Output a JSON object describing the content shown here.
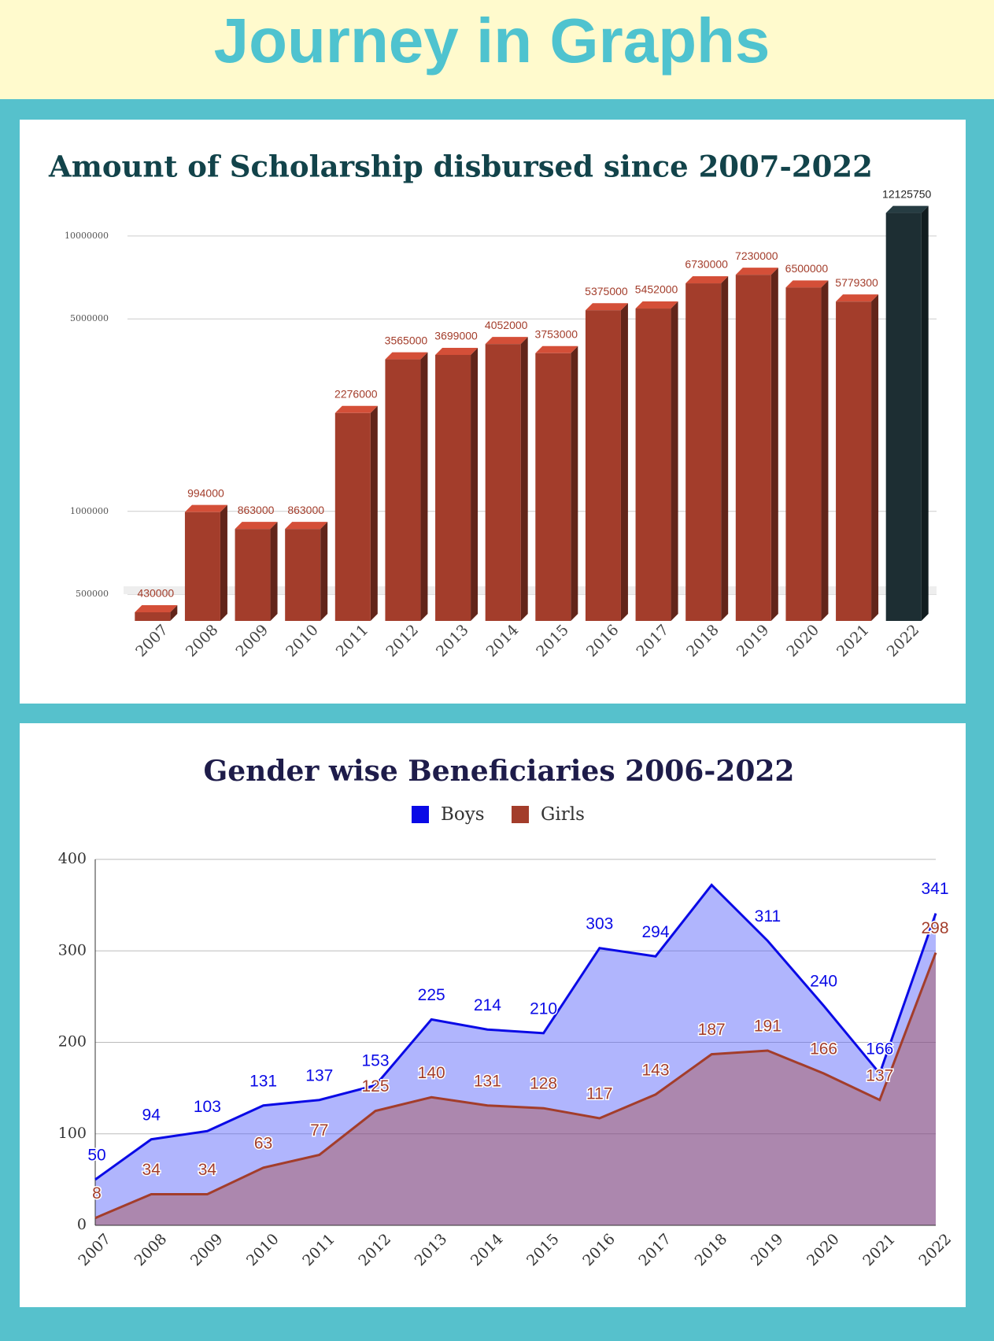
{
  "header": {
    "title": "Journey in Graphs"
  },
  "chart_data": [
    {
      "type": "bar",
      "title": "Amount of Scholarship disbursed since 2007-2022",
      "categories": [
        "2007",
        "2008",
        "2009",
        "2010",
        "2011",
        "2012",
        "2013",
        "2014",
        "2015",
        "2016",
        "2017",
        "2018",
        "2019",
        "2020",
        "2021",
        "2022"
      ],
      "values": [
        430000,
        994000,
        863000,
        863000,
        2276000,
        3565000,
        3699000,
        4052000,
        3753000,
        5375000,
        5452000,
        6730000,
        7230000,
        6500000,
        5779300,
        12125750
      ],
      "colors": [
        "#a33d2b",
        "#a33d2b",
        "#a33d2b",
        "#a33d2b",
        "#a33d2b",
        "#a33d2b",
        "#a33d2b",
        "#a33d2b",
        "#a33d2b",
        "#a33d2b",
        "#a33d2b",
        "#a33d2b",
        "#a33d2b",
        "#a33d2b",
        "#a33d2b",
        "#1d2e33"
      ],
      "yscale": "log",
      "ylim": [
        400000,
        13000000
      ],
      "yticks": [
        500000,
        1000000,
        5000000,
        10000000
      ],
      "grid": true
    },
    {
      "type": "area",
      "title": "Gender wise Beneficiaries 2006-2022",
      "categories": [
        "2007",
        "2008",
        "2009",
        "2010",
        "2011",
        "2012",
        "2013",
        "2014",
        "2015",
        "2016",
        "2017",
        "2018",
        "2019",
        "2020",
        "2021",
        "2022"
      ],
      "series": [
        {
          "name": "Boys",
          "color": "#0a0ae6",
          "values": [
            50,
            94,
            103,
            131,
            137,
            153,
            225,
            214,
            210,
            303,
            294,
            372,
            311,
            240,
            166,
            341
          ],
          "value_labels": [
            "50",
            "94",
            "103",
            "131",
            "137",
            "153",
            "225",
            "214",
            "210",
            "303",
            "294",
            null,
            "311",
            "240",
            "166",
            "341"
          ]
        },
        {
          "name": "Girls",
          "color": "#a33d2b",
          "values": [
            8,
            34,
            34,
            63,
            77,
            125,
            140,
            131,
            128,
            117,
            143,
            187,
            191,
            166,
            137,
            298
          ]
        }
      ],
      "ylim": [
        0,
        400
      ],
      "yticks": [
        0,
        100,
        200,
        300,
        400
      ],
      "grid": true,
      "legend": "top"
    }
  ]
}
